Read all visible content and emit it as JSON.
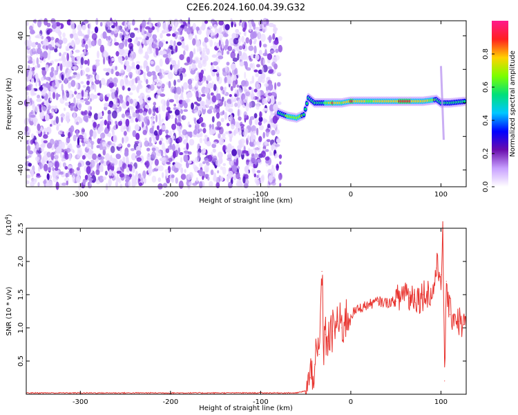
{
  "title": "C2E6.2024.160.04.39.G32",
  "chart_data": [
    {
      "type": "heatmap",
      "xlabel": "Height of straight line (km)",
      "ylabel": "Frequency (Hz)",
      "xlim": [
        -360,
        128
      ],
      "ylim": [
        -50,
        49
      ],
      "xticks": [
        -300,
        -200,
        -100,
        0,
        100
      ],
      "yticks": [
        -40,
        -20,
        0,
        20,
        40
      ],
      "colorbar": {
        "label": "Normalized spectral amplitude",
        "range": [
          0,
          1
        ],
        "ticks": [
          "0.0",
          "0.2",
          "0.4",
          "0.6",
          "0.8"
        ],
        "colors": [
          "#ffffff",
          "#c8a0ff",
          "#6a0dad",
          "#0000ff",
          "#00c8ff",
          "#00e07a",
          "#7cff00",
          "#ffd200",
          "#ff2020",
          "#ff1a8c"
        ]
      },
      "noise_region_x": [
        -360,
        -78
      ],
      "signal_track": [
        {
          "x": -80,
          "y": -6,
          "amp": 0.55
        },
        {
          "x": -70,
          "y": -8,
          "amp": 0.65
        },
        {
          "x": -60,
          "y": -9,
          "amp": 0.7
        },
        {
          "x": -52,
          "y": -7,
          "amp": 0.6
        },
        {
          "x": -47,
          "y": 3,
          "amp": 0.5
        },
        {
          "x": -40,
          "y": 0,
          "amp": 0.55
        },
        {
          "x": -30,
          "y": 0,
          "amp": 0.6
        },
        {
          "x": -20,
          "y": 0,
          "amp": 0.85
        },
        {
          "x": -10,
          "y": 0,
          "amp": 0.7
        },
        {
          "x": 0,
          "y": 1,
          "amp": 0.85
        },
        {
          "x": 20,
          "y": 1,
          "amp": 0.7
        },
        {
          "x": 40,
          "y": 1,
          "amp": 0.8
        },
        {
          "x": 60,
          "y": 1,
          "amp": 0.85
        },
        {
          "x": 80,
          "y": 1,
          "amp": 0.8
        },
        {
          "x": 95,
          "y": 2,
          "amp": 0.6
        },
        {
          "x": 100,
          "y": 0,
          "amp": 0.5
        },
        {
          "x": 110,
          "y": 0,
          "amp": 0.55
        },
        {
          "x": 128,
          "y": 1,
          "amp": 0.6
        }
      ]
    },
    {
      "type": "line",
      "xlabel": "Height of straight line (km)",
      "ylabel": "SNR (10 * v/v)",
      "y_multiplier": "(x10",
      "y_multiplier_exp": "4",
      "y_multiplier_close": ")",
      "xlim": [
        -360,
        128
      ],
      "ylim": [
        0,
        2.5
      ],
      "xticks": [
        -300,
        -200,
        -100,
        0,
        100
      ],
      "yticks": [
        0.5,
        1.0,
        1.5,
        2.0,
        2.5
      ],
      "series": [
        {
          "color": "#e8332e",
          "x": [
            -360,
            -300,
            -200,
            -100,
            -60,
            -50,
            -45,
            -40,
            -35,
            -32,
            -30,
            -28,
            -25,
            -20,
            -15,
            -10,
            -5,
            0,
            10,
            20,
            30,
            40,
            50,
            55,
            60,
            65,
            70,
            75,
            80,
            85,
            90,
            95,
            100,
            102,
            104,
            106,
            108,
            110,
            115,
            120,
            125,
            128
          ],
          "y": [
            0.02,
            0.02,
            0.02,
            0.02,
            0.02,
            0.05,
            0.25,
            0.45,
            0.6,
            1.85,
            0.7,
            0.9,
            0.8,
            0.95,
            1.1,
            1.0,
            1.15,
            1.2,
            1.3,
            1.35,
            1.4,
            1.38,
            1.4,
            1.45,
            1.6,
            1.45,
            1.5,
            1.45,
            1.5,
            1.55,
            1.45,
            1.9,
            1.8,
            2.4,
            0.2,
            1.7,
            1.4,
            1.2,
            1.2,
            1.1,
            1.05,
            1.0
          ]
        }
      ]
    }
  ]
}
